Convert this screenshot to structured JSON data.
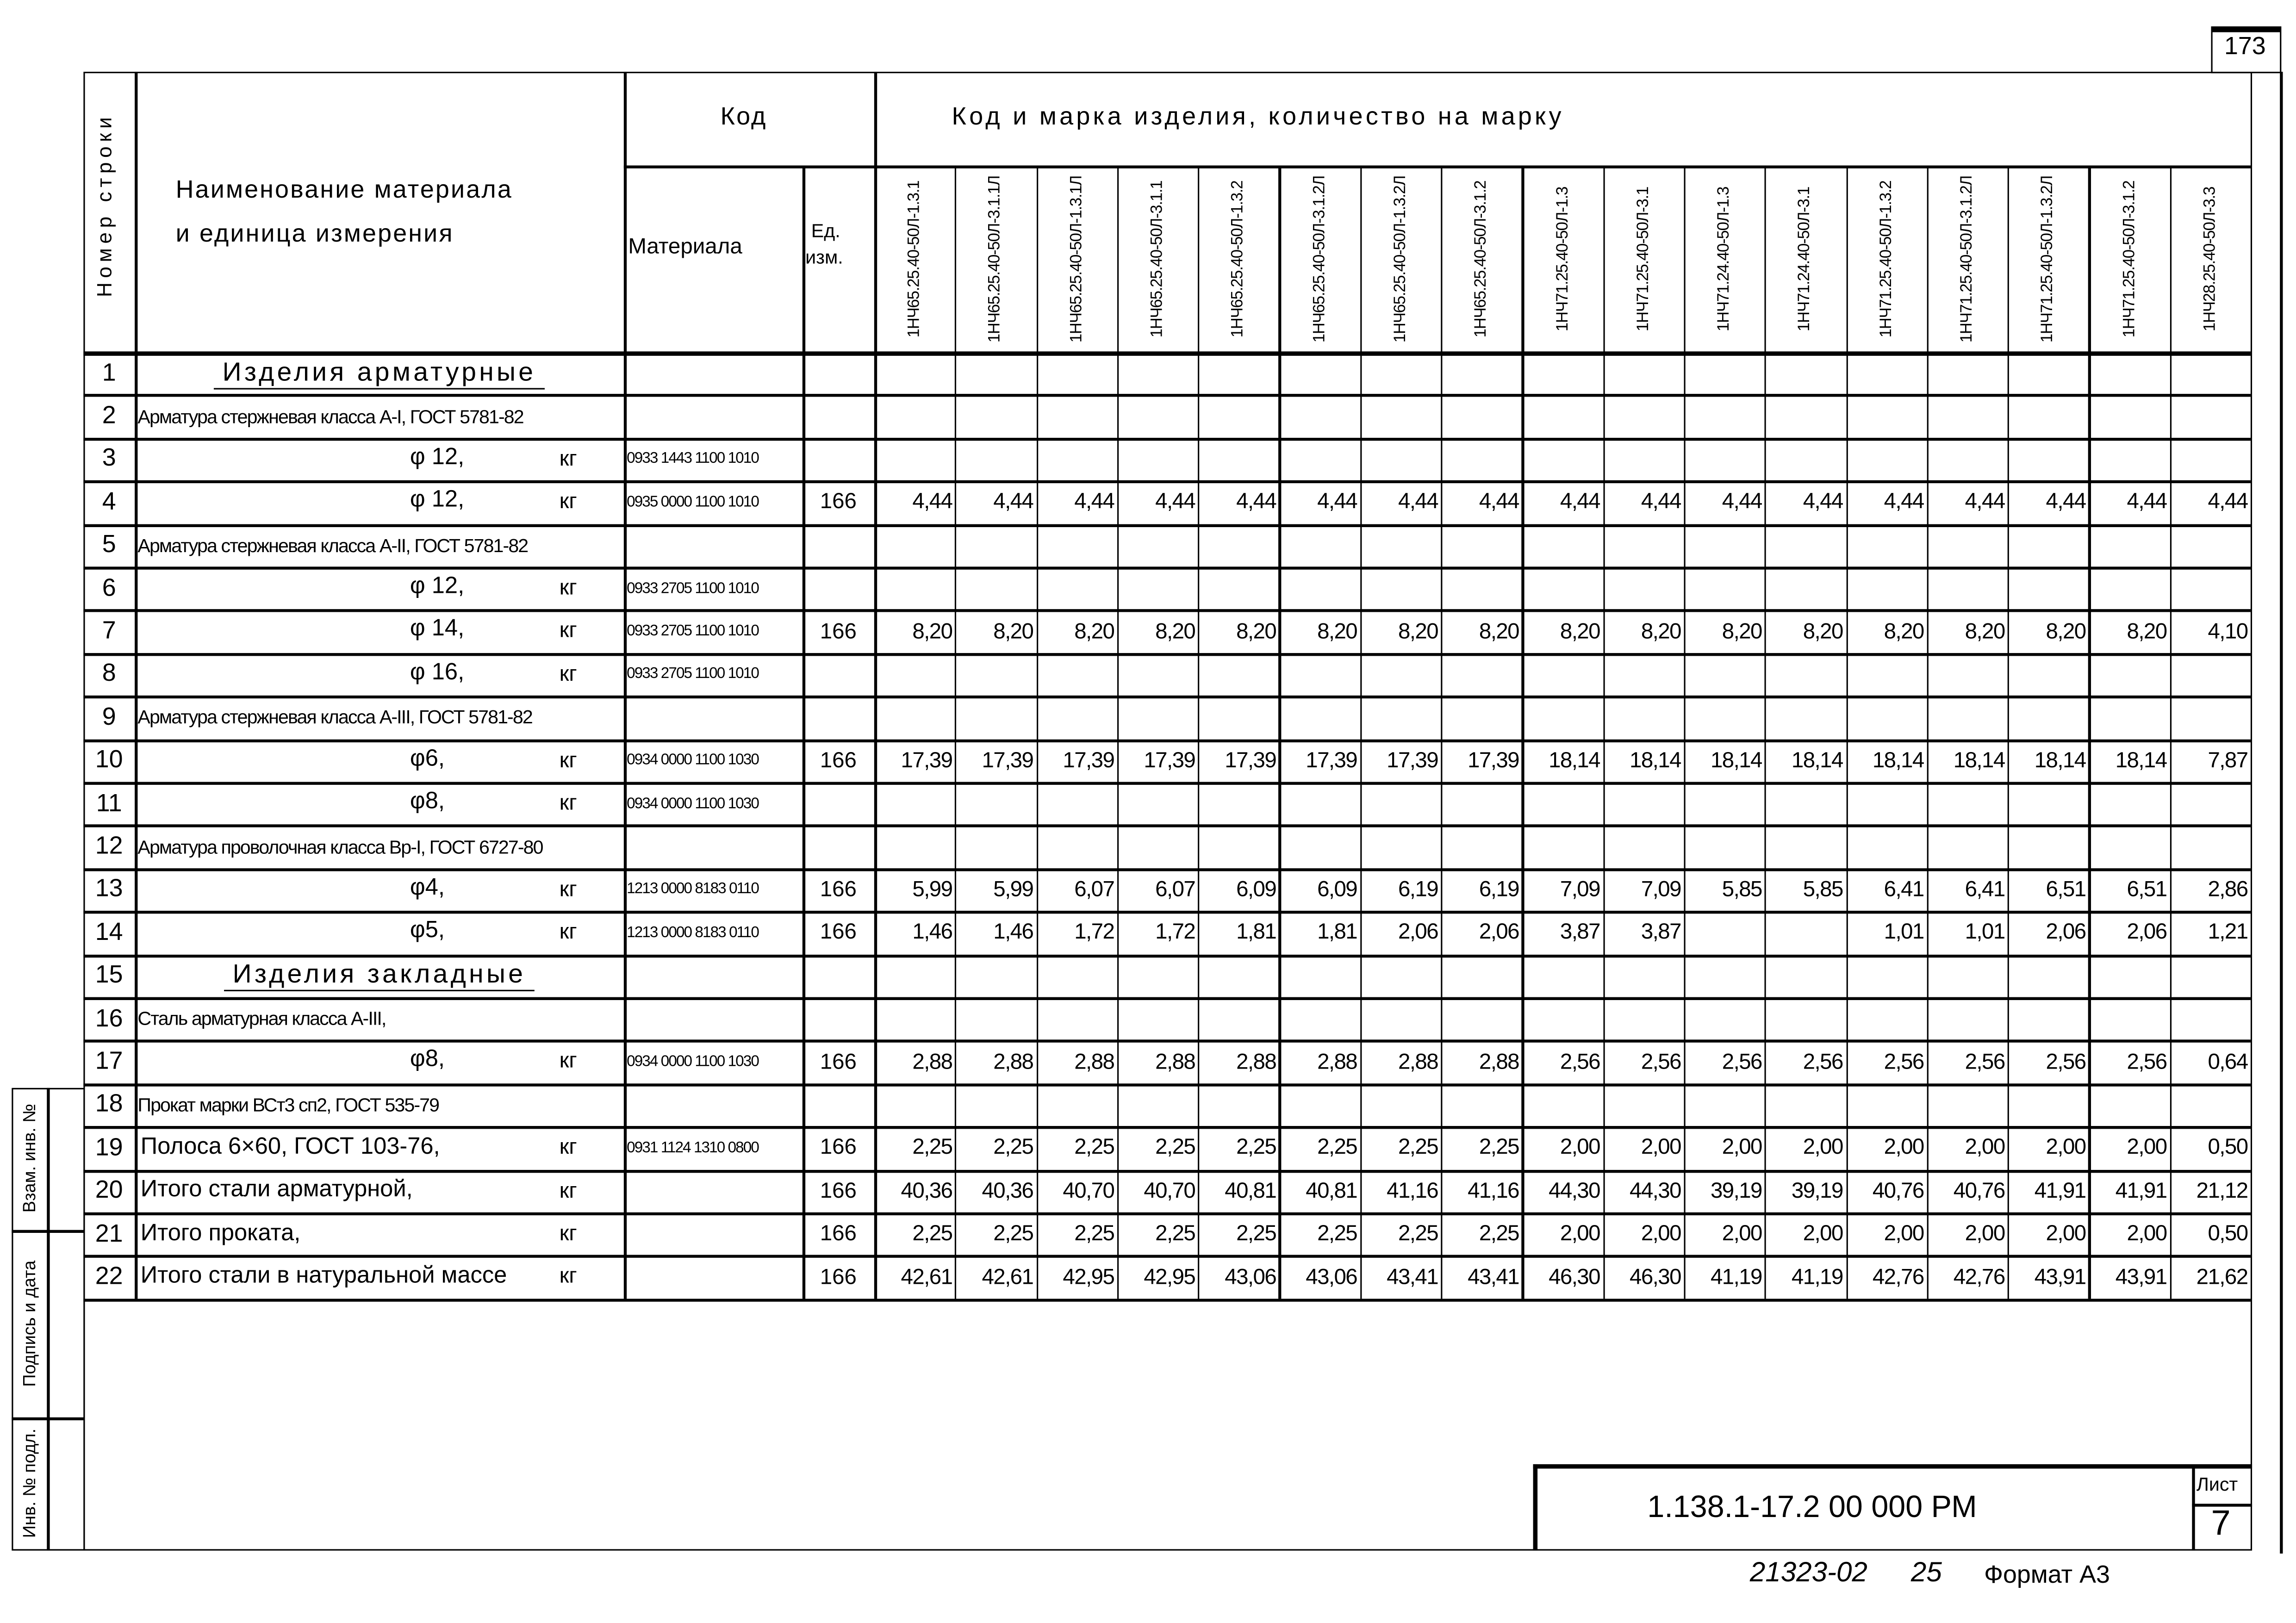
{
  "page_number": "173",
  "header": {
    "row_number": "Номер строки",
    "name": [
      "Наименование материала",
      "и единица измерения"
    ],
    "code": "Код",
    "material": "Материала",
    "unit": [
      "Ед.",
      "изм."
    ],
    "marks_title": "Код и марка изделия, количество на марку",
    "marks": [
      "1НЧ65.25.40-50Л-1.3.1",
      "1НЧ65.25.40-50Л-3.1.1Л",
      "1НЧ65.25.40-50Л-1.3.1Л",
      "1НЧ65.25.40-50Л-3.1.1",
      "1НЧ65.25.40-50Л-1.3.2",
      "1НЧ65.25.40-50Л-3.1.2Л",
      "1НЧ65.25.40-50Л-1.3.2Л",
      "1НЧ65.25.40-50Л-3.1.2",
      "1НЧ71.25.40-50Л-1.3",
      "1НЧ71.25.40-50Л-3.1",
      "1НЧ71.24.40-50Л-1.3",
      "1НЧ71.24.40-50Л-3.1",
      "1НЧ71.25.40-50Л-1.3.2",
      "1НЧ71.25.40-50Л-3.1.2Л",
      "1НЧ71.25.40-50Л-1.3.2Л",
      "1НЧ71.25.40-50Л-3.1.2",
      "1НЧ28.25.40-50Л-3.3"
    ]
  },
  "rows": [
    {
      "num": "1",
      "type": "section",
      "name": "Изделия арматурные",
      "unit": "",
      "code": "",
      "ed": "",
      "values": []
    },
    {
      "num": "2",
      "type": "group",
      "name": "Арматура стержневая класса A-I, ГОСТ 5781-82",
      "unit": "",
      "code": "",
      "ed": "",
      "values": []
    },
    {
      "num": "3",
      "type": "item",
      "name": "φ 12,",
      "unit": "кг",
      "code": "0933 1443 1100 1010",
      "ed": "",
      "values": []
    },
    {
      "num": "4",
      "type": "item",
      "name": "φ 12,",
      "unit": "кг",
      "code": "0935 0000 1100 1010",
      "ed": "166",
      "values": [
        "4,44",
        "4,44",
        "4,44",
        "4,44",
        "4,44",
        "4,44",
        "4,44",
        "4,44",
        "4,44",
        "4,44",
        "4,44",
        "4,44",
        "4,44",
        "4,44",
        "4,44",
        "4,44",
        "4,44"
      ]
    },
    {
      "num": "5",
      "type": "group",
      "name": "Арматура стержневая класса A-II, ГОСТ 5781-82",
      "unit": "",
      "code": "",
      "ed": "",
      "values": []
    },
    {
      "num": "6",
      "type": "item",
      "name": "φ 12,",
      "unit": "кг",
      "code": "0933 2705 1100 1010",
      "ed": "",
      "values": []
    },
    {
      "num": "7",
      "type": "item",
      "name": "φ 14,",
      "unit": "кг",
      "code": "0933 2705 1100 1010",
      "ed": "166",
      "values": [
        "8,20",
        "8,20",
        "8,20",
        "8,20",
        "8,20",
        "8,20",
        "8,20",
        "8,20",
        "8,20",
        "8,20",
        "8,20",
        "8,20",
        "8,20",
        "8,20",
        "8,20",
        "8,20",
        "4,10"
      ]
    },
    {
      "num": "8",
      "type": "item",
      "name": "φ 16,",
      "unit": "кг",
      "code": "0933 2705 1100 1010",
      "ed": "",
      "values": []
    },
    {
      "num": "9",
      "type": "group",
      "name": "Арматура стержневая класса A-III, ГОСТ 5781-82",
      "unit": "",
      "code": "",
      "ed": "",
      "values": []
    },
    {
      "num": "10",
      "type": "item",
      "name": "φ6,",
      "unit": "кг",
      "code": "0934 0000 1100 1030",
      "ed": "166",
      "values": [
        "17,39",
        "17,39",
        "17,39",
        "17,39",
        "17,39",
        "17,39",
        "17,39",
        "17,39",
        "18,14",
        "18,14",
        "18,14",
        "18,14",
        "18,14",
        "18,14",
        "18,14",
        "18,14",
        "7,87"
      ]
    },
    {
      "num": "11",
      "type": "item",
      "name": "φ8,",
      "unit": "кг",
      "code": "0934 0000 1100 1030",
      "ed": "",
      "values": []
    },
    {
      "num": "12",
      "type": "group",
      "name": "Арматура проволочная класса Bp-I, ГОСТ 6727-80",
      "unit": "",
      "code": "",
      "ed": "",
      "values": []
    },
    {
      "num": "13",
      "type": "item",
      "name": "φ4,",
      "unit": "кг",
      "code": "1213 0000 8183 0110",
      "ed": "166",
      "values": [
        "5,99",
        "5,99",
        "6,07",
        "6,07",
        "6,09",
        "6,09",
        "6,19",
        "6,19",
        "7,09",
        "7,09",
        "5,85",
        "5,85",
        "6,41",
        "6,41",
        "6,51",
        "6,51",
        "2,86"
      ]
    },
    {
      "num": "14",
      "type": "item",
      "name": "φ5,",
      "unit": "кг",
      "code": "1213 0000 8183 0110",
      "ed": "166",
      "values": [
        "1,46",
        "1,46",
        "1,72",
        "1,72",
        "1,81",
        "1,81",
        "2,06",
        "2,06",
        "3,87",
        "3,87",
        "",
        "",
        "1,01",
        "1,01",
        "2,06",
        "2,06",
        "1,21"
      ]
    },
    {
      "num": "15",
      "type": "section",
      "name": "Изделия закладные",
      "unit": "",
      "code": "",
      "ed": "",
      "values": []
    },
    {
      "num": "16",
      "type": "group",
      "name": "Сталь арматурная класса A-III,",
      "unit": "",
      "code": "",
      "ed": "",
      "values": []
    },
    {
      "num": "17",
      "type": "item",
      "name": "φ8,",
      "unit": "кг",
      "code": "0934 0000 1100 1030",
      "ed": "166",
      "values": [
        "2,88",
        "2,88",
        "2,88",
        "2,88",
        "2,88",
        "2,88",
        "2,88",
        "2,88",
        "2,56",
        "2,56",
        "2,56",
        "2,56",
        "2,56",
        "2,56",
        "2,56",
        "2,56",
        "0,64"
      ]
    },
    {
      "num": "18",
      "type": "group",
      "name": "Прокат марки ВСт3 сп2, ГОСТ 535-79",
      "unit": "",
      "code": "",
      "ed": "",
      "values": []
    },
    {
      "num": "19",
      "type": "total",
      "name": "Полоса 6×60, ГОСТ 103-76,",
      "unit": "кг",
      "code": "0931 1124 1310 0800",
      "ed": "166",
      "values": [
        "2,25",
        "2,25",
        "2,25",
        "2,25",
        "2,25",
        "2,25",
        "2,25",
        "2,25",
        "2,00",
        "2,00",
        "2,00",
        "2,00",
        "2,00",
        "2,00",
        "2,00",
        "2,00",
        "0,50"
      ]
    },
    {
      "num": "20",
      "type": "total",
      "name": "Итого стали арматурной,",
      "unit": "кг",
      "code": "",
      "ed": "166",
      "values": [
        "40,36",
        "40,36",
        "40,70",
        "40,70",
        "40,81",
        "40,81",
        "41,16",
        "41,16",
        "44,30",
        "44,30",
        "39,19",
        "39,19",
        "40,76",
        "40,76",
        "41,91",
        "41,91",
        "21,12"
      ]
    },
    {
      "num": "21",
      "type": "total",
      "name": "Итого проката,",
      "unit": "кг",
      "code": "",
      "ed": "166",
      "values": [
        "2,25",
        "2,25",
        "2,25",
        "2,25",
        "2,25",
        "2,25",
        "2,25",
        "2,25",
        "2,00",
        "2,00",
        "2,00",
        "2,00",
        "2,00",
        "2,00",
        "2,00",
        "2,00",
        "0,50"
      ]
    },
    {
      "num": "22",
      "type": "total",
      "name": "Итого стали в натуральной массе",
      "unit": "кг",
      "code": "",
      "ed": "166",
      "values": [
        "42,61",
        "42,61",
        "42,95",
        "42,95",
        "43,06",
        "43,06",
        "43,41",
        "43,41",
        "46,30",
        "46,30",
        "41,19",
        "41,19",
        "42,76",
        "42,76",
        "43,91",
        "43,91",
        "21,62"
      ]
    }
  ],
  "side_stamp": [
    "Взам. инв. №",
    "Подпись и дата",
    "Инв. № подл."
  ],
  "title_block": {
    "designation": "1.138.1-17.2 00 000 РМ",
    "sheet_label": "Лист",
    "sheet_number": "7"
  },
  "footer": {
    "archive_number": "21323-02",
    "copy_number": "25",
    "format": "Формат А3"
  }
}
